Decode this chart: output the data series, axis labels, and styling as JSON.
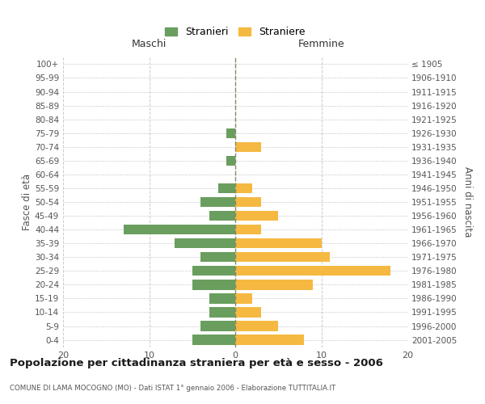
{
  "age_groups": [
    "0-4",
    "5-9",
    "10-14",
    "15-19",
    "20-24",
    "25-29",
    "30-34",
    "35-39",
    "40-44",
    "45-49",
    "50-54",
    "55-59",
    "60-64",
    "65-69",
    "70-74",
    "75-79",
    "80-84",
    "85-89",
    "90-94",
    "95-99",
    "100+"
  ],
  "birth_years": [
    "2001-2005",
    "1996-2000",
    "1991-1995",
    "1986-1990",
    "1981-1985",
    "1976-1980",
    "1971-1975",
    "1966-1970",
    "1961-1965",
    "1956-1960",
    "1951-1955",
    "1946-1950",
    "1941-1945",
    "1936-1940",
    "1931-1935",
    "1926-1930",
    "1921-1925",
    "1916-1920",
    "1911-1915",
    "1906-1910",
    "≤ 1905"
  ],
  "maschi": [
    5,
    4,
    3,
    3,
    5,
    5,
    4,
    7,
    13,
    3,
    4,
    2,
    0,
    1,
    0,
    1,
    0,
    0,
    0,
    0,
    0
  ],
  "femmine": [
    8,
    5,
    3,
    2,
    9,
    18,
    11,
    10,
    3,
    5,
    3,
    2,
    0,
    0,
    3,
    0,
    0,
    0,
    0,
    0,
    0
  ],
  "color_maschi": "#6a9e5e",
  "color_femmine": "#f5b942",
  "title": "Popolazione per cittadinanza straniera per età e sesso - 2006",
  "subtitle": "COMUNE DI LAMA MOCOGNO (MO) - Dati ISTAT 1° gennaio 2006 - Elaborazione TUTTITALIA.IT",
  "header_maschi": "Maschi",
  "header_femmine": "Femmine",
  "ylabel_left": "Fasce di età",
  "ylabel_right": "Anni di nascita",
  "legend_maschi": "Stranieri",
  "legend_femmine": "Straniere",
  "xlim": 20,
  "background_color": "#ffffff",
  "grid_color": "#cccccc"
}
